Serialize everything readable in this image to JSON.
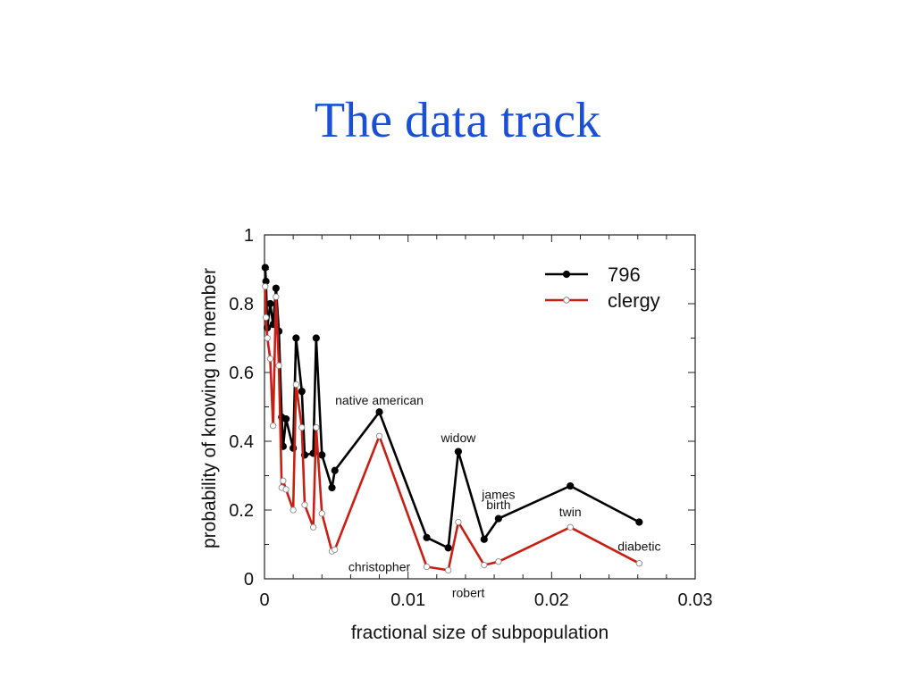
{
  "slide": {
    "title": "The data track"
  },
  "colors": {
    "title": "#1a4fd6",
    "series_796": "#000000",
    "series_clergy": "#c81e14"
  },
  "chart_data": {
    "type": "line",
    "title": "",
    "xlabel": "fractional size of subpopulation",
    "ylabel": "probability of knowing no member",
    "xlim": [
      0,
      0.03
    ],
    "ylim": [
      0,
      1
    ],
    "xticks": [
      {
        "value": 0,
        "label": "0"
      },
      {
        "value": 0.01,
        "label": "0.01"
      },
      {
        "value": 0.02,
        "label": "0.02"
      },
      {
        "value": 0.03,
        "label": "0.03"
      }
    ],
    "yticks": [
      {
        "value": 0,
        "label": "0"
      },
      {
        "value": 0.2,
        "label": "0.2"
      },
      {
        "value": 0.4,
        "label": "0.4"
      },
      {
        "value": 0.6,
        "label": "0.6"
      },
      {
        "value": 0.8,
        "label": "0.8"
      },
      {
        "value": 1,
        "label": "1"
      }
    ],
    "grid": false,
    "legend_position": "top-right",
    "series": [
      {
        "name": "796",
        "color": "#000000",
        "marker": "filled-circle",
        "points": [
          [
            5e-05,
            0.905
          ],
          [
            0.0001,
            0.865
          ],
          [
            0.0002,
            0.73
          ],
          [
            0.0004,
            0.8
          ],
          [
            0.0006,
            0.74
          ],
          [
            0.0008,
            0.845
          ],
          [
            0.001,
            0.72
          ],
          [
            0.0012,
            0.47
          ],
          [
            0.0013,
            0.385
          ],
          [
            0.0015,
            0.465
          ],
          [
            0.002,
            0.38
          ],
          [
            0.0022,
            0.7
          ],
          [
            0.0026,
            0.545
          ],
          [
            0.0028,
            0.36
          ],
          [
            0.0034,
            0.365
          ],
          [
            0.0036,
            0.7
          ],
          [
            0.004,
            0.36
          ],
          [
            0.0047,
            0.265
          ],
          [
            0.0049,
            0.315
          ],
          [
            0.008,
            0.485
          ],
          [
            0.0113,
            0.12
          ],
          [
            0.0128,
            0.09
          ],
          [
            0.0135,
            0.37
          ],
          [
            0.0153,
            0.115
          ],
          [
            0.0163,
            0.175
          ],
          [
            0.0213,
            0.27
          ],
          [
            0.0261,
            0.165
          ]
        ]
      },
      {
        "name": "clergy",
        "color": "#c81e14",
        "marker": "open-circle",
        "points": [
          [
            5e-05,
            0.85
          ],
          [
            0.0001,
            0.76
          ],
          [
            0.0002,
            0.7
          ],
          [
            0.0004,
            0.64
          ],
          [
            0.0006,
            0.445
          ],
          [
            0.0008,
            0.82
          ],
          [
            0.001,
            0.62
          ],
          [
            0.0012,
            0.265
          ],
          [
            0.0013,
            0.285
          ],
          [
            0.0015,
            0.26
          ],
          [
            0.002,
            0.2
          ],
          [
            0.0022,
            0.565
          ],
          [
            0.0026,
            0.44
          ],
          [
            0.0028,
            0.215
          ],
          [
            0.0034,
            0.15
          ],
          [
            0.0036,
            0.44
          ],
          [
            0.004,
            0.19
          ],
          [
            0.0047,
            0.08
          ],
          [
            0.0049,
            0.085
          ],
          [
            0.008,
            0.415
          ],
          [
            0.0113,
            0.035
          ],
          [
            0.0128,
            0.025
          ],
          [
            0.0135,
            0.165
          ],
          [
            0.0153,
            0.04
          ],
          [
            0.0163,
            0.05
          ],
          [
            0.0213,
            0.15
          ],
          [
            0.0261,
            0.045
          ]
        ]
      }
    ],
    "annotations": [
      {
        "text": "native american",
        "x": 0.008,
        "y": 0.52
      },
      {
        "text": "widow",
        "x": 0.0135,
        "y": 0.41
      },
      {
        "text": "james",
        "x": 0.0163,
        "y": 0.245
      },
      {
        "text": "birth",
        "x": 0.0163,
        "y": 0.215
      },
      {
        "text": "twin",
        "x": 0.0213,
        "y": 0.195
      },
      {
        "text": "diabetic",
        "x": 0.0261,
        "y": 0.095
      },
      {
        "text": "christopher",
        "x": 0.008,
        "y": 0.035
      },
      {
        "text": "robert",
        "x": 0.0142,
        "y": -0.04
      }
    ]
  }
}
